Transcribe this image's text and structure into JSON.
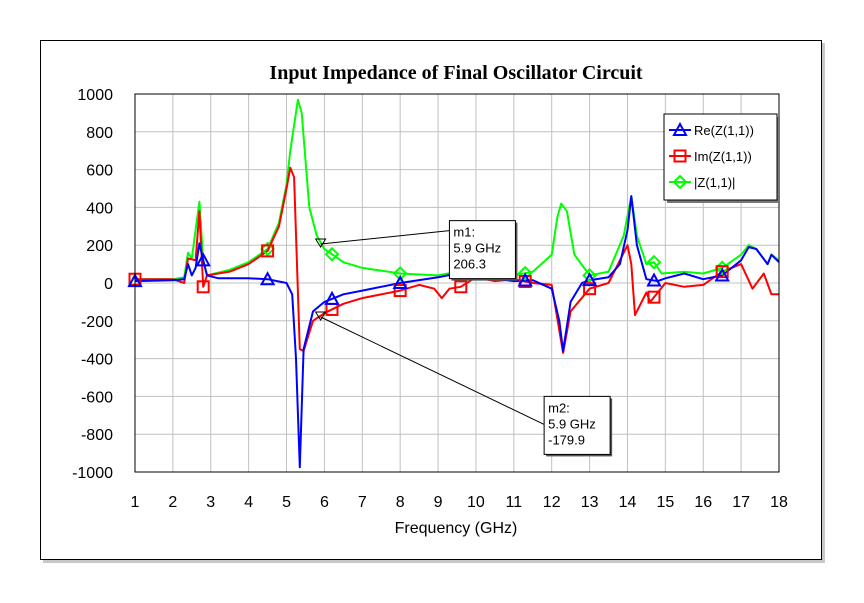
{
  "chart_data": {
    "type": "line",
    "title": "Input Impedance of Final Oscillator Circuit",
    "xlabel": "Frequency (GHz)",
    "ylabel": "",
    "xlim": [
      1,
      18
    ],
    "ylim": [
      -1000,
      1000
    ],
    "x_ticks": [
      "1",
      "2",
      "3",
      "4",
      "5",
      "6",
      "7",
      "8",
      "9",
      "10",
      "11",
      "12",
      "13",
      "14",
      "15",
      "16",
      "17",
      "18"
    ],
    "y_ticks": [
      "1000",
      "800",
      "600",
      "400",
      "200",
      "0",
      "-200",
      "-400",
      "-600",
      "-800",
      "-1000"
    ],
    "grid": true,
    "legend_position": "top-right",
    "series": [
      {
        "name": "Re(Z(1,1))",
        "color": "#0000ff",
        "marker": "triangle",
        "points": [
          [
            1,
            10
          ],
          [
            2,
            15
          ],
          [
            2.3,
            20
          ],
          [
            2.4,
            100
          ],
          [
            2.5,
            40
          ],
          [
            2.6,
            80
          ],
          [
            2.7,
            210
          ],
          [
            2.8,
            120
          ],
          [
            2.9,
            40
          ],
          [
            3.2,
            25
          ],
          [
            4,
            25
          ],
          [
            4.5,
            20
          ],
          [
            5.0,
            0
          ],
          [
            5.15,
            -60
          ],
          [
            5.25,
            -400
          ],
          [
            5.35,
            -975
          ],
          [
            5.45,
            -350
          ],
          [
            5.7,
            -150
          ],
          [
            6,
            -100
          ],
          [
            6.5,
            -60
          ],
          [
            7,
            -40
          ],
          [
            8,
            0
          ],
          [
            9,
            30
          ],
          [
            9.5,
            50
          ],
          [
            10,
            90
          ],
          [
            10.3,
            60
          ],
          [
            10.6,
            20
          ],
          [
            11,
            10
          ],
          [
            11.5,
            15
          ],
          [
            12,
            -30
          ],
          [
            12.2,
            -200
          ],
          [
            12.3,
            -360
          ],
          [
            12.5,
            -100
          ],
          [
            12.8,
            0
          ],
          [
            13,
            15
          ],
          [
            13.5,
            30
          ],
          [
            13.8,
            100
          ],
          [
            14,
            280
          ],
          [
            14.1,
            460
          ],
          [
            14.25,
            200
          ],
          [
            14.5,
            20
          ],
          [
            14.8,
            10
          ],
          [
            15,
            25
          ],
          [
            15.5,
            50
          ],
          [
            16,
            20
          ],
          [
            16.5,
            40
          ],
          [
            17,
            120
          ],
          [
            17.2,
            190
          ],
          [
            17.4,
            180
          ],
          [
            17.7,
            100
          ],
          [
            17.8,
            150
          ],
          [
            18,
            110
          ]
        ],
        "marker_x": [
          1,
          2.8,
          4.5,
          6.2,
          8,
          9.6,
          11.3,
          13,
          14.7,
          16.5
        ]
      },
      {
        "name": "Im(Z(1,1))",
        "color": "#ff0000",
        "marker": "square",
        "points": [
          [
            1,
            20
          ],
          [
            2,
            20
          ],
          [
            2.3,
            0
          ],
          [
            2.4,
            130
          ],
          [
            2.6,
            120
          ],
          [
            2.7,
            380
          ],
          [
            2.8,
            -20
          ],
          [
            2.9,
            40
          ],
          [
            3.5,
            60
          ],
          [
            4,
            100
          ],
          [
            4.5,
            170
          ],
          [
            4.8,
            300
          ],
          [
            5.0,
            500
          ],
          [
            5.1,
            610
          ],
          [
            5.2,
            560
          ],
          [
            5.35,
            -350
          ],
          [
            5.45,
            -360
          ],
          [
            5.7,
            -200
          ],
          [
            6,
            -160
          ],
          [
            6.5,
            -110
          ],
          [
            7,
            -80
          ],
          [
            8,
            -40
          ],
          [
            8.5,
            -10
          ],
          [
            8.9,
            -30
          ],
          [
            9.1,
            -80
          ],
          [
            9.3,
            -30
          ],
          [
            9.6,
            -20
          ],
          [
            10,
            30
          ],
          [
            10.5,
            10
          ],
          [
            11,
            20
          ],
          [
            11.5,
            0
          ],
          [
            12,
            -10
          ],
          [
            12.2,
            -250
          ],
          [
            12.3,
            -370
          ],
          [
            12.5,
            -150
          ],
          [
            13,
            -30
          ],
          [
            13.5,
            0
          ],
          [
            14,
            200
          ],
          [
            14.1,
            100
          ],
          [
            14.2,
            -170
          ],
          [
            14.5,
            -50
          ],
          [
            14.6,
            -100
          ],
          [
            14.8,
            -50
          ],
          [
            15,
            0
          ],
          [
            15.5,
            -20
          ],
          [
            16,
            -10
          ],
          [
            16.5,
            60
          ],
          [
            17,
            100
          ],
          [
            17.3,
            -30
          ],
          [
            17.6,
            50
          ],
          [
            17.8,
            -60
          ],
          [
            18,
            -60
          ]
        ],
        "marker_x": [
          1,
          2.8,
          4.5,
          6.2,
          8,
          9.6,
          11.3,
          13,
          14.7,
          16.5
        ]
      },
      {
        "name": "|Z(1,1)|",
        "color": "#00ff00",
        "marker": "diamond",
        "points": [
          [
            1,
            20
          ],
          [
            2,
            20
          ],
          [
            2.3,
            30
          ],
          [
            2.4,
            160
          ],
          [
            2.5,
            130
          ],
          [
            2.7,
            430
          ],
          [
            2.8,
            120
          ],
          [
            2.9,
            40
          ],
          [
            3.5,
            70
          ],
          [
            4,
            110
          ],
          [
            4.5,
            180
          ],
          [
            4.8,
            320
          ],
          [
            5.0,
            520
          ],
          [
            5.1,
            700
          ],
          [
            5.3,
            970
          ],
          [
            5.4,
            900
          ],
          [
            5.6,
            400
          ],
          [
            5.8,
            250
          ],
          [
            6,
            180
          ],
          [
            6.5,
            110
          ],
          [
            7,
            80
          ],
          [
            8,
            50
          ],
          [
            9,
            40
          ],
          [
            9.5,
            60
          ],
          [
            10,
            90
          ],
          [
            10.5,
            50
          ],
          [
            11,
            40
          ],
          [
            11.5,
            60
          ],
          [
            12,
            150
          ],
          [
            12.15,
            350
          ],
          [
            12.25,
            420
          ],
          [
            12.4,
            380
          ],
          [
            12.6,
            150
          ],
          [
            13,
            40
          ],
          [
            13.5,
            60
          ],
          [
            13.9,
            250
          ],
          [
            14.1,
            460
          ],
          [
            14.25,
            250
          ],
          [
            14.5,
            100
          ],
          [
            14.7,
            110
          ],
          [
            14.9,
            50
          ],
          [
            15.5,
            60
          ],
          [
            16,
            50
          ],
          [
            16.5,
            80
          ],
          [
            17,
            150
          ],
          [
            17.2,
            200
          ],
          [
            17.4,
            180
          ],
          [
            17.7,
            100
          ],
          [
            17.8,
            150
          ],
          [
            18,
            120
          ]
        ],
        "marker_x": [
          4.5,
          6.2,
          8,
          9.6,
          11.3,
          13,
          14.7,
          16.5
        ]
      }
    ],
    "markers": [
      {
        "name": "m1",
        "x": 5.9,
        "y": 206.3,
        "lines": [
          "m1:",
          "5.9 GHz",
          "206.3"
        ],
        "box_x": 9.3,
        "box_y": 330
      },
      {
        "name": "m2",
        "x": 5.9,
        "y": -179.9,
        "lines": [
          "m2:",
          "5.9 GHz",
          "-179.9"
        ],
        "box_x": 11.8,
        "box_y": -600
      }
    ]
  }
}
